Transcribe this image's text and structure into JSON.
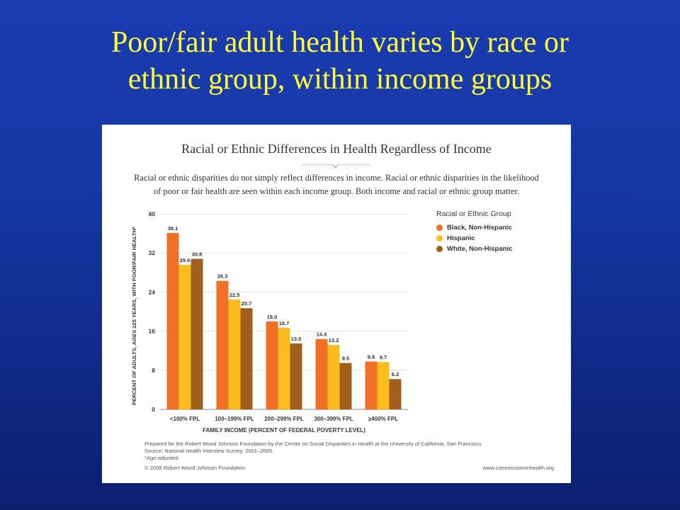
{
  "slide": {
    "title_line1": "Poor/fair adult health varies by race or",
    "title_line2": "ethnic group, within income groups"
  },
  "card": {
    "title": "Racial or Ethnic Differences in Health Regardless of Income",
    "subtitle_line1": "Racial or ethnic disparities do not simply reflect differences in income. Racial or ethnic disparities in the likelihood",
    "subtitle_line2": "of poor or fair health are seen within each income group. Both income and racial or ethnic group matter.",
    "footer_line1": "Prepared for the Robert Wood Johnson Foundation by the Center on Social Disparities in Health at the University of California, San Francisco.",
    "footer_line2": "Source: National Health Interview Survey, 2001–2005.",
    "footer_line3": "*Age-adjusted",
    "copyright": "© 2008 Robert Wood Johnson Foundation",
    "website": "www.commissiononhealth.org"
  },
  "legend": {
    "title": "Racial or Ethnic Group"
  },
  "chart_data": {
    "type": "bar",
    "categories": [
      "<100% FPL",
      "100–199% FPL",
      "200–299% FPL",
      "300–399% FPL",
      "≥400% FPL"
    ],
    "series": [
      {
        "name": "Black, Non-Hispanic",
        "color": "#f07126",
        "values": [
          36.1,
          26.3,
          18.0,
          14.4,
          9.8
        ]
      },
      {
        "name": "Hispanic",
        "color": "#fbbc1e",
        "values": [
          29.6,
          22.5,
          16.7,
          13.2,
          9.7
        ]
      },
      {
        "name": "White, Non-Hispanic",
        "color": "#a0601b",
        "values": [
          30.8,
          20.7,
          13.5,
          9.5,
          6.2
        ]
      }
    ],
    "value_labels": [
      [
        "36.1",
        "26.3",
        "18.0",
        "14.4",
        "9.8"
      ],
      [
        "29.6",
        "22.5",
        "16.7",
        "13.2",
        "9.7"
      ],
      [
        "30.8",
        "20.7",
        "13.5",
        "9.5",
        "6.2"
      ]
    ],
    "yticks": [
      "0",
      "8",
      "16",
      "24",
      "32",
      "40"
    ],
    "ylim": [
      0,
      40
    ],
    "xlabel": "FAMILY INCOME (PERCENT OF FEDERAL POVERTY LEVEL)",
    "ylabel": "PERCENT OF ADULTS, AGES ≥25 YEARS, WITH POOR/FAIR HEALTH*",
    "grid": true,
    "legend_position": "top-right"
  }
}
